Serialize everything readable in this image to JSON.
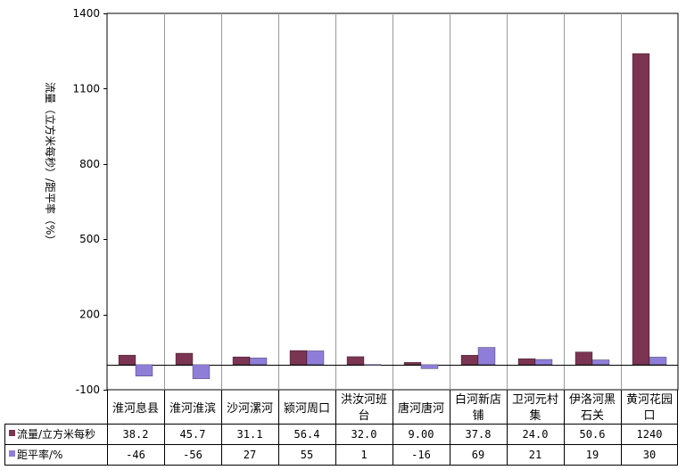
{
  "chart_data": {
    "type": "bar",
    "title": "",
    "ylabel": "流量（立方米每秒）/距平率（%）",
    "ylim": [
      -100,
      1400
    ],
    "yticks": [
      "1400",
      "1100",
      "800",
      "500",
      "200",
      "-100"
    ],
    "grid": true,
    "legend": "table-bottom",
    "categories": [
      [
        "淮河息县"
      ],
      [
        "淮河淮滨"
      ],
      [
        "沙河漯河"
      ],
      [
        "颍河周口"
      ],
      [
        "洪汝河班",
        "台"
      ],
      [
        "唐河唐河"
      ],
      [
        "白河新店",
        "铺"
      ],
      [
        "卫河元村",
        "集"
      ],
      [
        "伊洛河黑",
        "石关"
      ],
      [
        "黄河花园",
        "口"
      ]
    ],
    "series": [
      {
        "name": "流量/立方米每秒",
        "color": "#7b3452",
        "values": [
          38.2,
          45.7,
          31.1,
          56.4,
          32.0,
          9.0,
          37.8,
          24.0,
          50.6,
          1240
        ],
        "labels": [
          "38.2",
          "45.7",
          "31.1",
          "56.4",
          "32.0",
          "9.00",
          "37.8",
          "24.0",
          "50.6",
          "1240"
        ]
      },
      {
        "name": "距平率/%",
        "color": "#8f7ed8",
        "values": [
          -46,
          -56,
          27,
          55,
          1,
          -16,
          69,
          21,
          19,
          30
        ],
        "labels": [
          "-46",
          "-56",
          "27",
          "55",
          "1",
          "-16",
          "69",
          "21",
          "19",
          "30"
        ]
      }
    ]
  }
}
